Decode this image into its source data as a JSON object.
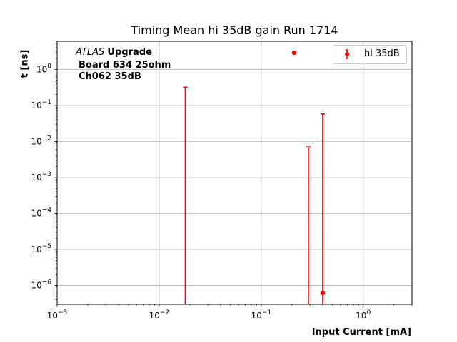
{
  "chart_data": {
    "type": "scatter",
    "title": "Timing Mean hi 35dB gain Run 1714",
    "xlabel": "Input Current [mA]",
    "ylabel": "t [ns]",
    "xscale": "log",
    "yscale": "log",
    "xlim": [
      0.001,
      3
    ],
    "ylim": [
      3e-07,
      6
    ],
    "grid": true,
    "xticks": [
      {
        "value": 0.001,
        "base": "10",
        "exp": "−3"
      },
      {
        "value": 0.01,
        "base": "10",
        "exp": "−2"
      },
      {
        "value": 0.1,
        "base": "10",
        "exp": "−1"
      },
      {
        "value": 1,
        "base": "10",
        "exp": "0"
      }
    ],
    "yticks": [
      {
        "value": 1e-06,
        "base": "10",
        "exp": "−6"
      },
      {
        "value": 1e-05,
        "base": "10",
        "exp": "−5"
      },
      {
        "value": 0.0001,
        "base": "10",
        "exp": "−4"
      },
      {
        "value": 0.001,
        "base": "10",
        "exp": "−3"
      },
      {
        "value": 0.01,
        "base": "10",
        "exp": "−2"
      },
      {
        "value": 0.1,
        "base": "10",
        "exp": "−1"
      },
      {
        "value": 1,
        "base": "10",
        "exp": "0"
      }
    ],
    "legend_position": "top-right",
    "series": [
      {
        "name": "hi 35dB",
        "color": "#ff0000",
        "points": [
          {
            "x": 0.018,
            "y": null,
            "yerr_high": 0.32
          },
          {
            "x": 0.21,
            "y": 2.9,
            "yerr_high": null
          },
          {
            "x": 0.29,
            "y": null,
            "yerr_high": 0.007
          },
          {
            "x": 0.4,
            "y": 6.2e-07,
            "yerr_high": 0.058
          }
        ]
      }
    ]
  },
  "annotation": {
    "atlas_italic": "ATLAS",
    "atlas_bold": "Upgrade",
    "line2": "Board 634 25ohm",
    "line3": "Ch062 35dB"
  }
}
